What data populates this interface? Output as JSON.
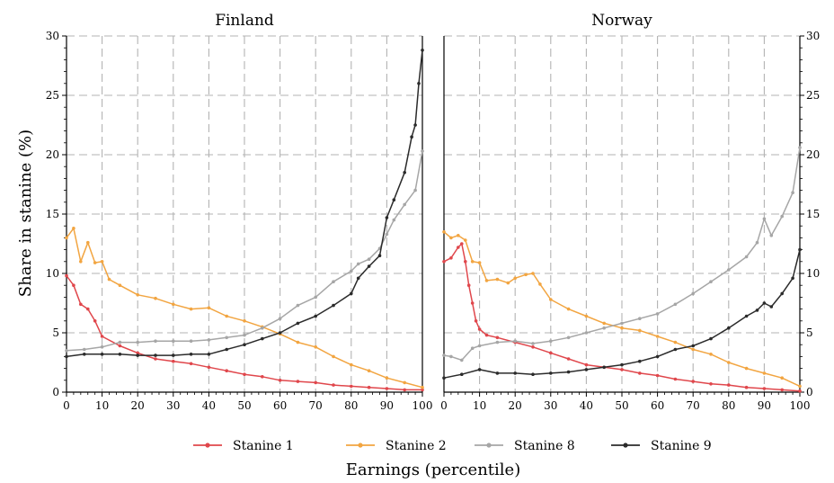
{
  "chart_data": {
    "type": "line",
    "ylabel": "Share in stanine (%)",
    "xlabel": "Earnings (percentile)",
    "xlim": [
      0,
      100
    ],
    "ylim": [
      0,
      30
    ],
    "x_ticks": [
      0,
      10,
      20,
      30,
      40,
      50,
      60,
      70,
      80,
      90,
      100
    ],
    "y_ticks": [
      0,
      5,
      10,
      15,
      20,
      25,
      30
    ],
    "grid": true,
    "legend_position": "bottom",
    "series_meta": [
      {
        "name": "Stanine 1",
        "color": "#e0474c"
      },
      {
        "name": "Stanine 2",
        "color": "#f2a541"
      },
      {
        "name": "Stanine 8",
        "color": "#a6a6a6"
      },
      {
        "name": "Stanine 9",
        "color": "#2b2b2b"
      }
    ],
    "panels": [
      {
        "title": "Finland",
        "series": [
          {
            "name": "Stanine 1",
            "x": [
              0,
              2,
              4,
              6,
              8,
              10,
              15,
              20,
              25,
              30,
              35,
              40,
              45,
              50,
              55,
              60,
              65,
              70,
              75,
              80,
              85,
              90,
              95,
              100
            ],
            "y": [
              9.8,
              9.0,
              7.4,
              7.0,
              6.0,
              4.7,
              3.9,
              3.3,
              2.8,
              2.6,
              2.4,
              2.1,
              1.8,
              1.5,
              1.3,
              1.0,
              0.9,
              0.8,
              0.6,
              0.5,
              0.4,
              0.3,
              0.2,
              0.2
            ]
          },
          {
            "name": "Stanine 2",
            "x": [
              0,
              2,
              4,
              6,
              8,
              10,
              12,
              15,
              20,
              25,
              30,
              35,
              40,
              45,
              50,
              55,
              60,
              65,
              70,
              75,
              80,
              85,
              90,
              95,
              100
            ],
            "y": [
              13.0,
              13.8,
              11.0,
              12.6,
              10.9,
              11.0,
              9.5,
              9.0,
              8.2,
              7.9,
              7.4,
              7.0,
              7.1,
              6.4,
              6.0,
              5.5,
              4.9,
              4.2,
              3.8,
              3.0,
              2.3,
              1.8,
              1.2,
              0.8,
              0.4
            ]
          },
          {
            "name": "Stanine 8",
            "x": [
              0,
              5,
              10,
              15,
              20,
              25,
              30,
              35,
              40,
              45,
              50,
              55,
              60,
              65,
              70,
              75,
              80,
              82,
              85,
              88,
              90,
              92,
              95,
              98,
              100
            ],
            "y": [
              3.5,
              3.6,
              3.8,
              4.2,
              4.2,
              4.3,
              4.3,
              4.3,
              4.4,
              4.6,
              4.8,
              5.4,
              6.2,
              7.3,
              8.0,
              9.3,
              10.2,
              10.8,
              11.2,
              12.1,
              13.3,
              14.5,
              15.8,
              17.0,
              20.3
            ]
          },
          {
            "name": "Stanine 9",
            "x": [
              0,
              5,
              10,
              15,
              20,
              25,
              30,
              35,
              40,
              45,
              50,
              55,
              60,
              65,
              70,
              75,
              80,
              82,
              85,
              88,
              90,
              92,
              95,
              97,
              98,
              99,
              100
            ],
            "y": [
              3.0,
              3.2,
              3.2,
              3.2,
              3.1,
              3.1,
              3.1,
              3.2,
              3.2,
              3.6,
              4.0,
              4.5,
              5.0,
              5.8,
              6.4,
              7.3,
              8.3,
              9.6,
              10.6,
              11.5,
              14.7,
              16.2,
              18.5,
              21.5,
              22.5,
              26.0,
              28.8
            ]
          }
        ]
      },
      {
        "title": "Norway",
        "series": [
          {
            "name": "Stanine 1",
            "x": [
              0,
              2,
              4,
              5,
              6,
              7,
              8,
              9,
              10,
              12,
              15,
              20,
              25,
              30,
              35,
              40,
              45,
              50,
              55,
              60,
              65,
              70,
              75,
              80,
              85,
              90,
              95,
              100
            ],
            "y": [
              11.0,
              11.3,
              12.2,
              12.5,
              11.0,
              9.0,
              7.5,
              6.0,
              5.3,
              4.8,
              4.6,
              4.2,
              3.8,
              3.3,
              2.8,
              2.3,
              2.1,
              1.9,
              1.6,
              1.4,
              1.1,
              0.9,
              0.7,
              0.6,
              0.4,
              0.3,
              0.2,
              0.1
            ]
          },
          {
            "name": "Stanine 2",
            "x": [
              0,
              2,
              4,
              6,
              8,
              10,
              12,
              15,
              18,
              20,
              23,
              25,
              27,
              30,
              35,
              40,
              45,
              50,
              55,
              60,
              65,
              70,
              75,
              80,
              85,
              90,
              95,
              100
            ],
            "y": [
              13.5,
              13.0,
              13.2,
              12.8,
              11.0,
              10.9,
              9.4,
              9.5,
              9.2,
              9.6,
              9.9,
              10.0,
              9.1,
              7.8,
              7.0,
              6.4,
              5.8,
              5.4,
              5.2,
              4.7,
              4.2,
              3.6,
              3.2,
              2.5,
              2.0,
              1.6,
              1.2,
              0.5
            ]
          },
          {
            "name": "Stanine 8",
            "x": [
              0,
              2,
              5,
              8,
              10,
              15,
              20,
              25,
              30,
              35,
              40,
              45,
              50,
              55,
              60,
              65,
              70,
              75,
              80,
              85,
              88,
              90,
              92,
              95,
              98,
              100
            ],
            "y": [
              3.1,
              3.0,
              2.7,
              3.7,
              3.9,
              4.2,
              4.3,
              4.1,
              4.3,
              4.6,
              5.0,
              5.4,
              5.8,
              6.2,
              6.6,
              7.4,
              8.3,
              9.3,
              10.3,
              11.4,
              12.6,
              14.6,
              13.2,
              14.8,
              16.8,
              20.6
            ]
          },
          {
            "name": "Stanine 9",
            "x": [
              0,
              5,
              10,
              15,
              20,
              25,
              30,
              35,
              40,
              45,
              50,
              55,
              60,
              65,
              70,
              75,
              80,
              85,
              88,
              90,
              92,
              95,
              98,
              100
            ],
            "y": [
              1.2,
              1.5,
              1.9,
              1.6,
              1.6,
              1.5,
              1.6,
              1.7,
              1.9,
              2.1,
              2.3,
              2.6,
              3.0,
              3.6,
              3.9,
              4.5,
              5.4,
              6.4,
              6.9,
              7.5,
              7.2,
              8.3,
              9.6,
              12.0
            ]
          }
        ]
      }
    ]
  }
}
